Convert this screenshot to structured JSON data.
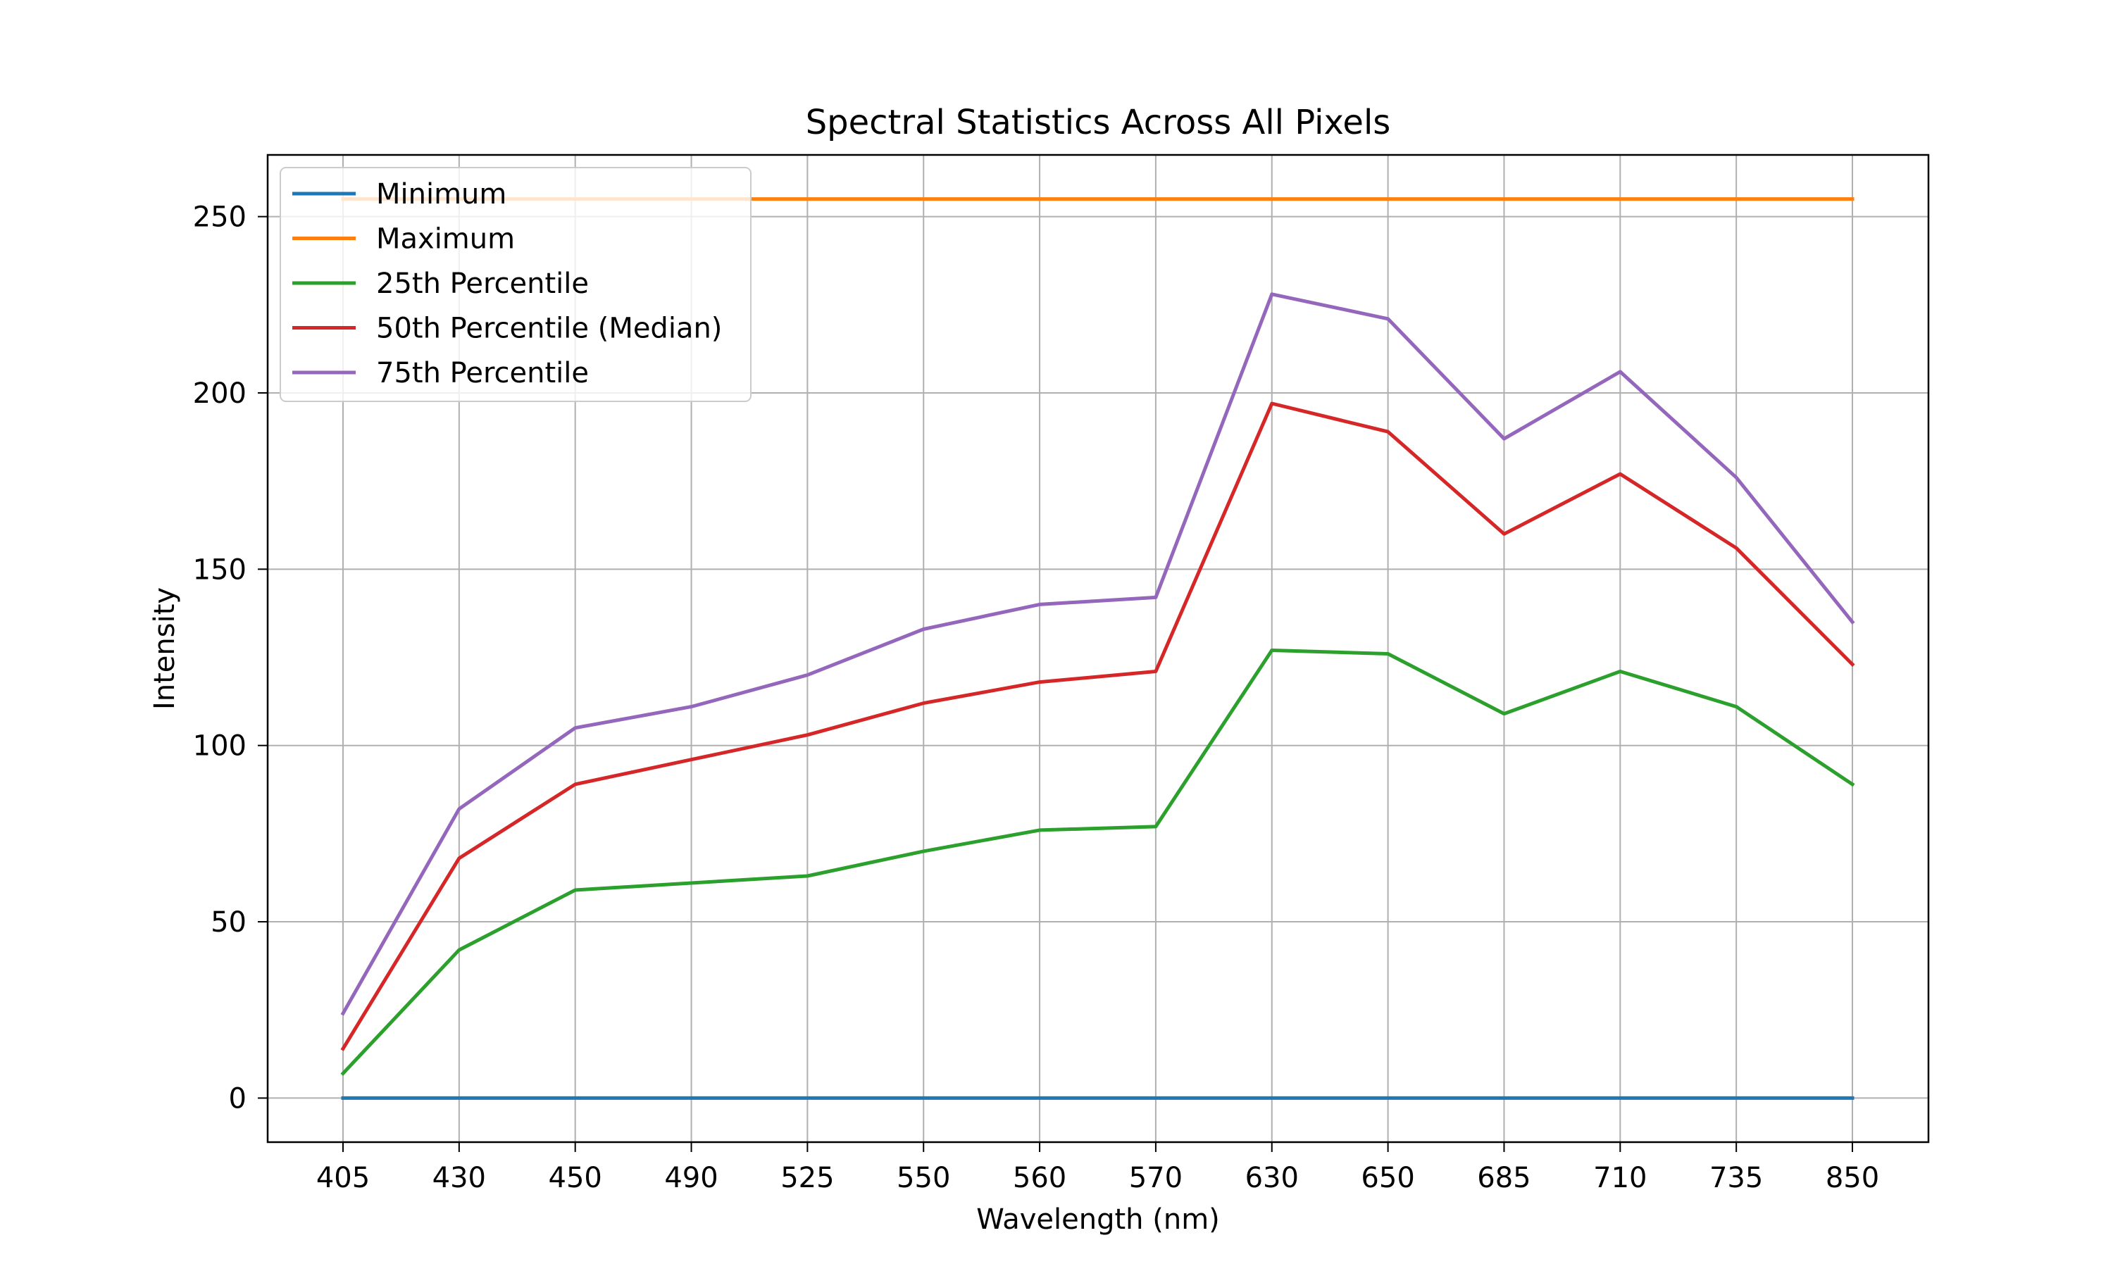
{
  "chart_data": {
    "type": "line",
    "title": "Spectral Statistics Across All Pixels",
    "xlabel": "Wavelength (nm)",
    "ylabel": "Intensity",
    "categories": [
      "405",
      "430",
      "450",
      "490",
      "525",
      "550",
      "560",
      "570",
      "630",
      "650",
      "685",
      "710",
      "735",
      "850"
    ],
    "ylim": [
      -12.5,
      267.5
    ],
    "yticks": [
      0,
      50,
      100,
      150,
      200,
      250
    ],
    "grid": true,
    "legend_position": "top-left",
    "series": [
      {
        "name": "Minimum",
        "color": "#1f77b4",
        "values": [
          0,
          0,
          0,
          0,
          0,
          0,
          0,
          0,
          0,
          0,
          0,
          0,
          0,
          0
        ]
      },
      {
        "name": "Maximum",
        "color": "#ff7f0e",
        "values": [
          255,
          255,
          255,
          255,
          255,
          255,
          255,
          255,
          255,
          255,
          255,
          255,
          255,
          255
        ]
      },
      {
        "name": "25th Percentile",
        "color": "#2ca02c",
        "values": [
          7,
          42,
          59,
          61,
          63,
          70,
          76,
          77,
          127,
          126,
          109,
          121,
          111,
          89
        ]
      },
      {
        "name": "50th Percentile (Median)",
        "color": "#d62728",
        "values": [
          14,
          68,
          89,
          96,
          103,
          112,
          118,
          121,
          197,
          189,
          160,
          177,
          156,
          123
        ]
      },
      {
        "name": "75th Percentile",
        "color": "#9467bd",
        "values": [
          24,
          82,
          105,
          111,
          120,
          133,
          140,
          142,
          228,
          221,
          187,
          206,
          176,
          135
        ]
      }
    ]
  }
}
